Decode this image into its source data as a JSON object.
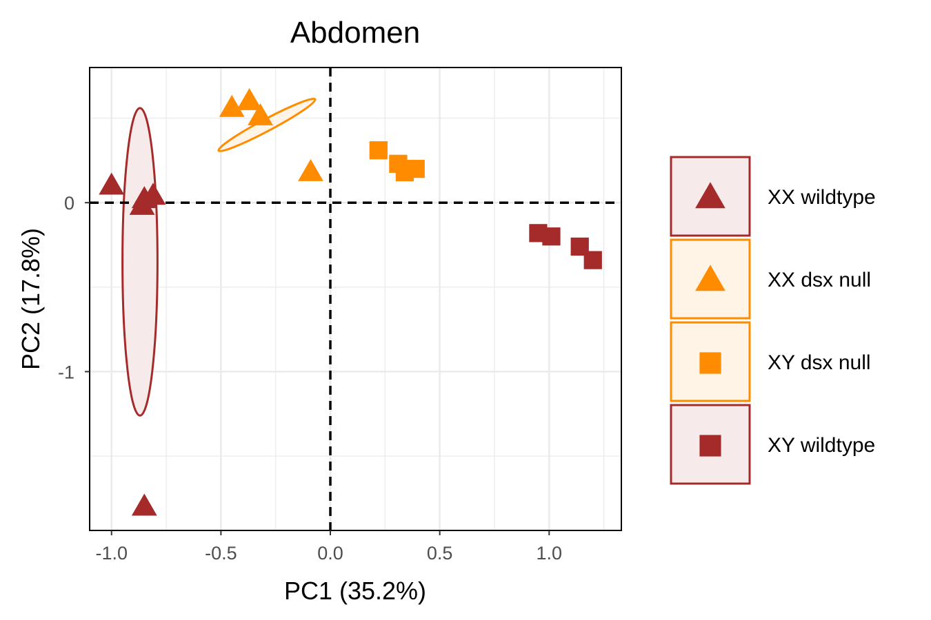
{
  "chart_data": {
    "type": "scatter",
    "title": "Abdomen",
    "xlabel": "PC1 (35.2%)",
    "ylabel": "PC2 (17.8%)",
    "xlim": [
      -1.1,
      1.33
    ],
    "ylim": [
      -1.94,
      0.8
    ],
    "x_ticks": [
      -1.0,
      -0.5,
      0.0,
      0.5,
      1.0
    ],
    "x_tick_labels": [
      "-1.0",
      "-0.5",
      "0.0",
      "0.5",
      "1.0"
    ],
    "y_ticks": [
      0,
      -1
    ],
    "y_tick_labels": [
      "0",
      "-1"
    ],
    "x_minor_gridlines": [
      -0.75,
      -0.25,
      0.25,
      0.75,
      1.25
    ],
    "y_minor_gridlines": [
      0.5,
      -0.5,
      -1.5
    ],
    "reference_lines": {
      "x": 0,
      "y": 0,
      "style": "dashed"
    },
    "grid": true,
    "legend_position": "right",
    "series": [
      {
        "name": "XX wildtype",
        "color": "#A52A2A",
        "shape": "triangle",
        "points": [
          [
            -1.0,
            0.1
          ],
          [
            -0.85,
            0.02
          ],
          [
            -0.86,
            -0.02
          ],
          [
            -0.81,
            0.04
          ],
          [
            -0.85,
            -1.8
          ]
        ],
        "ellipse": {
          "cx": -0.87,
          "cy": -0.35,
          "rx": 0.08,
          "ry": 0.91,
          "angle": 0
        }
      },
      {
        "name": "XX dsx null",
        "color": "#FF8C00",
        "shape": "triangle",
        "points": [
          [
            -0.45,
            0.56
          ],
          [
            -0.37,
            0.6
          ],
          [
            -0.32,
            0.51
          ],
          [
            -0.09,
            0.18
          ]
        ],
        "ellipse": {
          "cx": -0.29,
          "cy": 0.46,
          "rx": 0.25,
          "ry": 0.035,
          "angle": -28
        }
      },
      {
        "name": "XY dsx null",
        "color": "#FF8C00",
        "shape": "square",
        "points": [
          [
            0.22,
            0.31
          ],
          [
            0.31,
            0.23
          ],
          [
            0.34,
            0.18
          ],
          [
            0.39,
            0.2
          ]
        ],
        "ellipse": null
      },
      {
        "name": "XY wildtype",
        "color": "#A52A2A",
        "shape": "square",
        "points": [
          [
            0.95,
            -0.18
          ],
          [
            1.01,
            -0.2
          ],
          [
            1.14,
            -0.26
          ],
          [
            1.2,
            -0.34
          ]
        ],
        "ellipse": null
      }
    ]
  }
}
